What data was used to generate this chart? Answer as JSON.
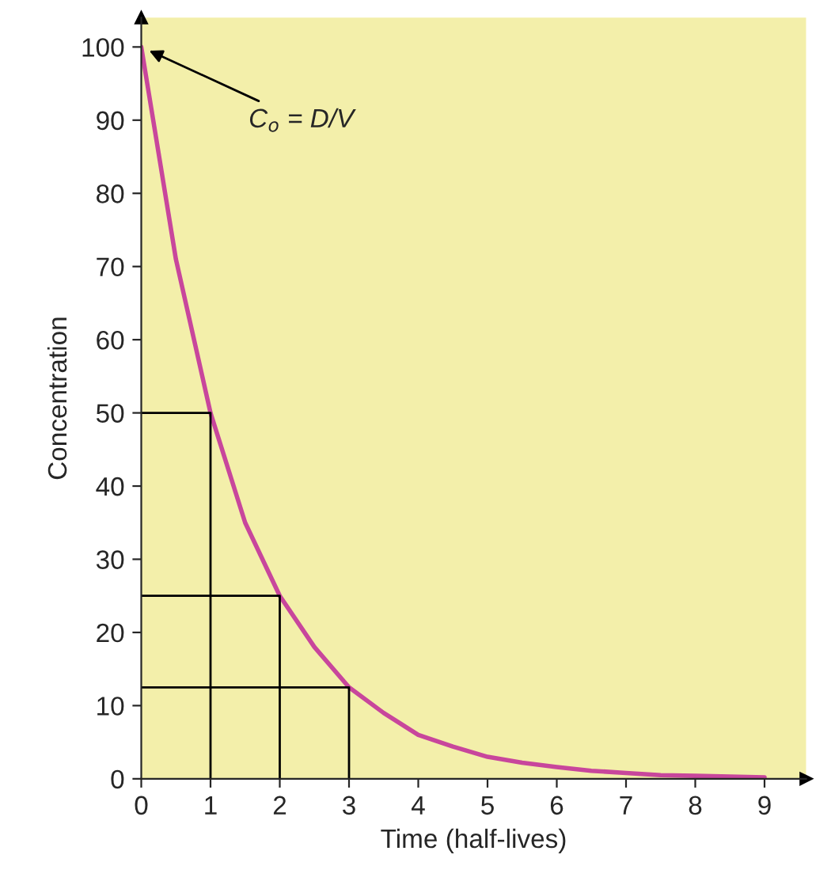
{
  "chart_data": {
    "type": "line",
    "xlabel": "Time (half-lives)",
    "ylabel": "Concentration",
    "xlim": [
      0,
      9.6
    ],
    "ylim": [
      0,
      104
    ],
    "xticks": [
      0,
      1,
      2,
      3,
      4,
      5,
      6,
      7,
      8,
      9
    ],
    "yticks": [
      0,
      10,
      20,
      30,
      40,
      50,
      60,
      70,
      80,
      90,
      100
    ],
    "grid": false,
    "marker": "none",
    "line_style": "solid",
    "annotations": [
      {
        "text": "C$_{o}$ = D/V",
        "x": 0,
        "y": 100
      }
    ],
    "series": [
      {
        "color": "#c8469c",
        "x": [
          0,
          0.5,
          1,
          1.5,
          2,
          2.5,
          3,
          3.5,
          4,
          4.5,
          5,
          5.5,
          6,
          6.5,
          7,
          7.5,
          8,
          8.5,
          9
        ],
        "values": [
          100,
          71,
          50,
          35,
          25,
          18,
          12.5,
          9,
          6,
          4.4,
          3,
          2.2,
          1.6,
          1.1,
          0.8,
          0.5,
          0.4,
          0.3,
          0.2
        ]
      },
      {
        "color": "#000000",
        "x": [
          0,
          1,
          1
        ],
        "values": [
          50,
          50,
          0
        ]
      },
      {
        "color": "#000000",
        "x": [
          0,
          2,
          2
        ],
        "values": [
          25,
          25,
          0
        ]
      },
      {
        "color": "#000000",
        "x": [
          0,
          3,
          3
        ],
        "values": [
          12.5,
          12.5,
          0
        ]
      }
    ]
  }
}
